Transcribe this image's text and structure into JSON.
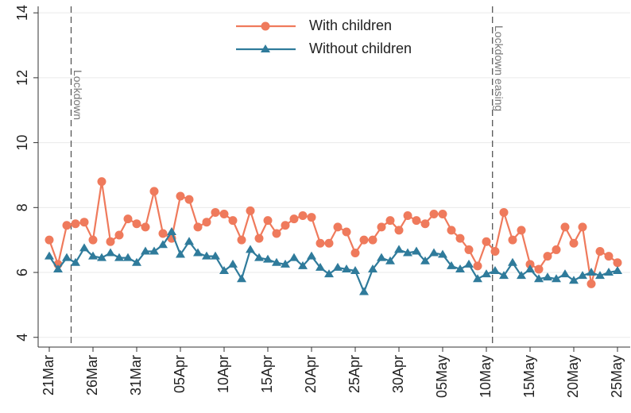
{
  "chart_data": {
    "type": "line",
    "categories": [
      "21Mar",
      null,
      null,
      null,
      null,
      "26Mar",
      null,
      null,
      null,
      null,
      "31Mar",
      null,
      null,
      null,
      null,
      "05Apr",
      null,
      null,
      null,
      null,
      "10Apr",
      null,
      null,
      null,
      null,
      "15Apr",
      null,
      null,
      null,
      null,
      "20Apr",
      null,
      null,
      null,
      null,
      "25Apr",
      null,
      null,
      null,
      null,
      "30Apr",
      null,
      null,
      null,
      null,
      "05May",
      null,
      null,
      null,
      null,
      "10May",
      null,
      null,
      null,
      null,
      "15May",
      null,
      null,
      null,
      null,
      "20May",
      null,
      null,
      null,
      null,
      "25May"
    ],
    "series": [
      {
        "name": "With children",
        "color": "#ef7a5c",
        "marker": "circle",
        "values": [
          7.0,
          6.25,
          7.45,
          7.5,
          7.55,
          7.0,
          8.8,
          6.95,
          7.15,
          7.65,
          7.5,
          7.4,
          8.5,
          7.2,
          7.05,
          8.35,
          8.25,
          7.4,
          7.55,
          7.85,
          7.8,
          7.6,
          7.0,
          7.9,
          7.05,
          7.6,
          7.2,
          7.45,
          7.65,
          7.75,
          7.7,
          6.9,
          6.9,
          7.4,
          7.25,
          6.6,
          7.0,
          7.0,
          7.4,
          7.6,
          7.3,
          7.75,
          7.6,
          7.5,
          7.8,
          7.8,
          7.3,
          7.05,
          6.7,
          6.2,
          6.95,
          6.65,
          7.85,
          7.0,
          7.3,
          6.25,
          6.1,
          6.5,
          6.7,
          7.4,
          6.9,
          7.4,
          5.65,
          6.65,
          6.5,
          6.3
        ]
      },
      {
        "name": "Without children",
        "color": "#2f7b9b",
        "marker": "triangle",
        "values": [
          6.5,
          6.1,
          6.45,
          6.3,
          6.75,
          6.5,
          6.45,
          6.6,
          6.45,
          6.45,
          6.3,
          6.65,
          6.65,
          6.85,
          7.25,
          6.55,
          6.95,
          6.6,
          6.5,
          6.5,
          6.05,
          6.25,
          5.8,
          6.7,
          6.45,
          6.4,
          6.3,
          6.25,
          6.45,
          6.2,
          6.5,
          6.15,
          5.95,
          6.15,
          6.1,
          6.05,
          5.4,
          6.1,
          6.45,
          6.35,
          6.7,
          6.6,
          6.65,
          6.35,
          6.6,
          6.55,
          6.2,
          6.1,
          6.25,
          5.8,
          5.95,
          6.05,
          5.9,
          6.3,
          5.9,
          6.1,
          5.8,
          5.85,
          5.8,
          5.95,
          5.75,
          5.9,
          6.0,
          5.9,
          6.0,
          6.05
        ]
      }
    ],
    "annotations": [
      {
        "text": "Lockdown",
        "x": 2.5
      },
      {
        "text": "Lockdown easing",
        "x": 50.7
      }
    ],
    "ylim": [
      3.7,
      14.2
    ],
    "yticks": [
      4,
      6,
      8,
      10,
      12,
      14
    ],
    "grid": true
  }
}
